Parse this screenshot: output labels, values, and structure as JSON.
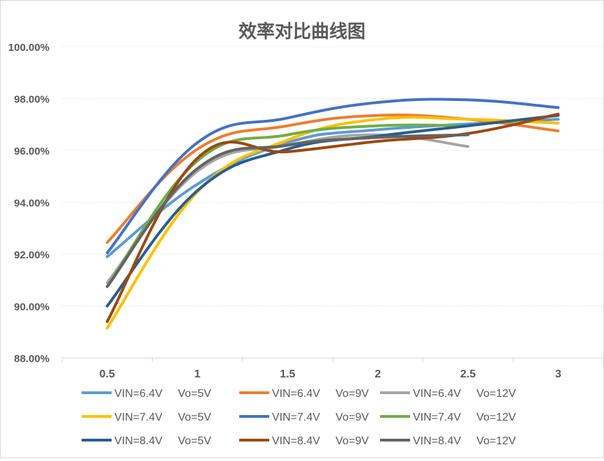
{
  "chart_data": {
    "type": "line",
    "title": "效率对比曲线图",
    "xlabel": "",
    "ylabel": "",
    "categories": [
      "0.5",
      "1",
      "1.5",
      "2",
      "2.5",
      "3"
    ],
    "ylim": [
      88.0,
      100.0
    ],
    "y_ticks": [
      "88.00%",
      "90.00%",
      "92.00%",
      "94.00%",
      "96.00%",
      "98.00%",
      "100.00%"
    ],
    "y_tick_values": [
      88,
      90,
      92,
      94,
      96,
      98,
      100
    ],
    "grid": "horizontal dotted",
    "legend_position": "bottom",
    "series": [
      {
        "name": "VIN=6.4V     Vo=5V",
        "color": "#5b9bd5",
        "x": [
          0.5,
          1,
          1.5,
          2,
          3
        ],
        "values": [
          91.9,
          94.7,
          96.3,
          96.8,
          97.2
        ]
      },
      {
        "name": "VIN=6.4V     Vo=9V",
        "color": "#ed7d31",
        "x": [
          0.5,
          1,
          1.5,
          2,
          2.5,
          3
        ],
        "values": [
          92.45,
          96.05,
          96.95,
          97.35,
          97.2,
          96.75
        ]
      },
      {
        "name": "VIN=6.4V     Vo=12V",
        "color": "#a5a5a5",
        "x": [
          0.5,
          1,
          1.5,
          2,
          2.5
        ],
        "values": [
          90.9,
          95.2,
          96.2,
          96.6,
          96.15
        ]
      },
      {
        "name": "VIN=7.4V     Vo=5V",
        "color": "#ffc000",
        "x": [
          0.5,
          1,
          1.5,
          2,
          2.5,
          3
        ],
        "values": [
          89.15,
          94.4,
          96.4,
          97.2,
          97.2,
          97.05
        ]
      },
      {
        "name": "VIN=7.4V     Vo=9V",
        "color": "#4472c4",
        "x": [
          0.5,
          1,
          1.5,
          2,
          2.5,
          3
        ],
        "values": [
          92.05,
          96.3,
          97.25,
          97.85,
          97.95,
          97.65
        ]
      },
      {
        "name": "VIN=7.4V     Vo=12V",
        "color": "#70ad47",
        "x": [
          0.5,
          1,
          1.5,
          2,
          2.5
        ],
        "values": [
          90.75,
          95.6,
          96.6,
          96.95,
          96.95
        ]
      },
      {
        "name": "VIN=8.4V     Vo=5V",
        "color": "#255e91",
        "x": [
          0.5,
          1,
          1.5,
          2,
          2.5,
          3
        ],
        "values": [
          90.0,
          94.45,
          96.05,
          96.55,
          96.95,
          97.35
        ]
      },
      {
        "name": "VIN=8.4V     Vo=9V",
        "color": "#9e480e",
        "x": [
          0.5,
          1,
          1.5,
          2,
          2.5,
          3
        ],
        "values": [
          89.4,
          95.7,
          95.95,
          96.35,
          96.65,
          97.4
        ]
      },
      {
        "name": "VIN=8.4V     Vo=12V",
        "color": "#636363",
        "x": [
          0.5,
          1,
          1.5,
          2,
          2.5
        ],
        "values": [
          90.75,
          95.3,
          96.2,
          96.5,
          96.6
        ]
      }
    ]
  }
}
